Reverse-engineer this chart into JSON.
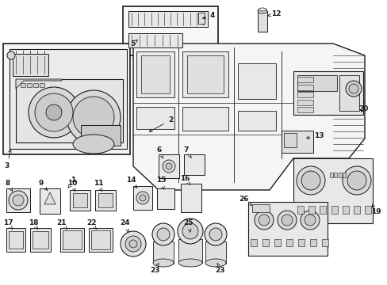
{
  "bg_color": "#ffffff",
  "line_color": "#1a1a1a",
  "fig_width": 4.89,
  "fig_height": 3.6,
  "dpi": 100,
  "lw_thin": 0.5,
  "lw_med": 0.8,
  "lw_thick": 1.0,
  "fs_label": 6.0,
  "fs_num": 6.5
}
